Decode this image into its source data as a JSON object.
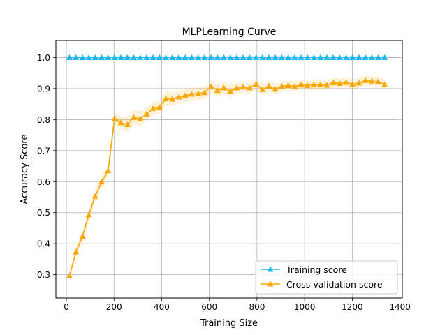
{
  "chart_data": {
    "type": "line",
    "title": "MLPLearning Curve",
    "xlabel": "Training Size",
    "ylabel": "Accuracy Score",
    "xlim": [
      -44,
      1410
    ],
    "ylim": [
      0.225,
      1.055
    ],
    "xticks": [
      0,
      200,
      400,
      600,
      800,
      1000,
      1200,
      1400
    ],
    "yticks": [
      0.3,
      0.4,
      0.5,
      0.6,
      0.7,
      0.8,
      0.9,
      1.0
    ],
    "xtick_labels": [
      "0",
      "200",
      "400",
      "600",
      "800",
      "1000",
      "1200",
      "1400"
    ],
    "ytick_labels": [
      "0.3",
      "0.4",
      "0.5",
      "0.6",
      "0.7",
      "0.8",
      "0.9",
      "1.0"
    ],
    "grid": true,
    "legend_position": "bottom-right",
    "x": [
      13,
      40,
      68,
      94,
      121,
      148,
      175,
      202,
      229,
      256,
      283,
      310,
      337,
      364,
      391,
      418,
      445,
      472,
      499,
      526,
      553,
      580,
      607,
      634,
      661,
      688,
      715,
      742,
      769,
      796,
      823,
      850,
      877,
      904,
      931,
      958,
      985,
      1012,
      1039,
      1066,
      1093,
      1120,
      1147,
      1174,
      1201,
      1228,
      1255,
      1282,
      1309,
      1336
    ],
    "series": [
      {
        "name": "Training score",
        "color": "#1ab8e8",
        "marker": "triangle",
        "values": [
          1,
          1,
          1,
          1,
          1,
          1,
          1,
          1,
          1,
          1,
          1,
          1,
          1,
          1,
          1,
          1,
          1,
          1,
          1,
          1,
          1,
          1,
          1,
          1,
          1,
          1,
          1,
          1,
          1,
          1,
          1,
          1,
          1,
          1,
          1,
          1,
          1,
          1,
          1,
          1,
          1,
          1,
          1,
          1,
          1,
          1,
          1,
          1,
          1,
          1
        ]
      },
      {
        "name": "Cross-validation score",
        "color": "#ffa500",
        "marker": "triangle",
        "values": [
          0.296,
          0.373,
          0.424,
          0.493,
          0.553,
          0.599,
          0.635,
          0.803,
          0.79,
          0.784,
          0.807,
          0.803,
          0.818,
          0.836,
          0.84,
          0.868,
          0.866,
          0.873,
          0.878,
          0.882,
          0.884,
          0.887,
          0.906,
          0.894,
          0.902,
          0.891,
          0.902,
          0.905,
          0.902,
          0.914,
          0.897,
          0.908,
          0.898,
          0.907,
          0.91,
          0.907,
          0.912,
          0.91,
          0.912,
          0.912,
          0.911,
          0.919,
          0.917,
          0.92,
          0.914,
          0.918,
          0.926,
          0.924,
          0.922,
          0.913
        ],
        "band": [
          0.012,
          0.012,
          0.015,
          0.018,
          0.02,
          0.02,
          0.02,
          0.015,
          0.022,
          0.024,
          0.024,
          0.024,
          0.022,
          0.022,
          0.022,
          0.022,
          0.022,
          0.022,
          0.022,
          0.02,
          0.02,
          0.02,
          0.02,
          0.02,
          0.02,
          0.02,
          0.018,
          0.018,
          0.018,
          0.018,
          0.018,
          0.018,
          0.018,
          0.016,
          0.016,
          0.016,
          0.016,
          0.016,
          0.016,
          0.016,
          0.016,
          0.016,
          0.016,
          0.016,
          0.016,
          0.016,
          0.016,
          0.016,
          0.016,
          0.016
        ]
      }
    ]
  }
}
